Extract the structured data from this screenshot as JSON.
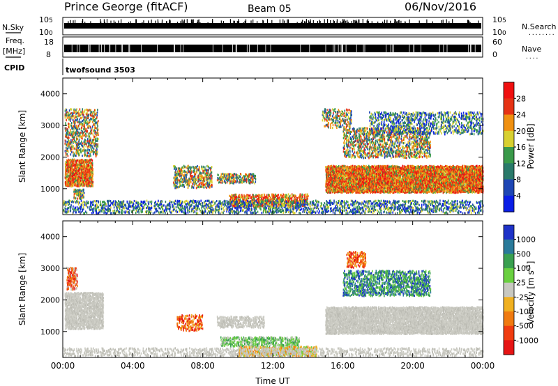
{
  "header": {
    "station": "Prince George (fitACF)",
    "beam": "Beam 05",
    "date": "06/Nov/2016"
  },
  "nsky_panel": {
    "left_label": "N.Sky",
    "right_label": "N.Search",
    "right_dots": "........",
    "left_ticks": [
      {
        "base": "10",
        "exp": "5",
        "value": 100000
      },
      {
        "base": "10",
        "exp": "0",
        "value": 1
      }
    ],
    "right_ticks": [
      {
        "base": "10",
        "exp": "5",
        "value": 100000
      },
      {
        "base": "10",
        "exp": "0",
        "value": 1
      }
    ]
  },
  "freq_panel": {
    "left_label_1": "Freq.",
    "left_label_2": "[MHz]",
    "right_label": "Nave",
    "right_dots": "....",
    "left_ticks": [
      "18",
      "8"
    ],
    "right_ticks": [
      "60",
      "0"
    ],
    "ylim_left": [
      8,
      18
    ],
    "ylim_right": [
      0,
      60
    ]
  },
  "cpid": {
    "label": "CPID",
    "value": "twofsound 3503"
  },
  "chart_data": [
    {
      "type": "heatmap",
      "name": "power",
      "ylabel": "Slant Range [km]",
      "colorbar_label": "Power [dB]",
      "yticks": [
        "1000",
        "2000",
        "3000",
        "4000"
      ],
      "ylim": [
        180,
        4500
      ],
      "xlim": [
        "00:00",
        "24:00"
      ],
      "colorbar_ticks": [
        "4",
        "8",
        "12",
        "16",
        "20",
        "24",
        "28"
      ],
      "colorbar_colors": [
        "#0a1ee6",
        "#1e46b4",
        "#2a7a6a",
        "#3a9a4a",
        "#d8d030",
        "#f09010",
        "#e63214",
        "#f01010"
      ],
      "scatter_regions": [
        {
          "t0": 0.1,
          "t1": 1.7,
          "r0": 1050,
          "r1": 1900,
          "density": 0.85,
          "level": "high"
        },
        {
          "t0": 0.1,
          "t1": 2.0,
          "r0": 2000,
          "r1": 3500,
          "density": 0.35,
          "level": "mid"
        },
        {
          "t0": 0.6,
          "t1": 1.2,
          "r0": 650,
          "r1": 950,
          "density": 0.5,
          "level": "mid"
        },
        {
          "t0": 6.3,
          "t1": 8.5,
          "r0": 1000,
          "r1": 1700,
          "density": 0.45,
          "level": "mid"
        },
        {
          "t0": 8.8,
          "t1": 11.0,
          "r0": 1150,
          "r1": 1450,
          "density": 0.5,
          "level": "mid"
        },
        {
          "t0": 9.5,
          "t1": 14.0,
          "r0": 400,
          "r1": 800,
          "density": 0.55,
          "level": "high"
        },
        {
          "t0": 0.0,
          "t1": 24.0,
          "r0": 200,
          "r1": 600,
          "density": 0.35,
          "level": "low"
        },
        {
          "t0": 15.0,
          "t1": 24.0,
          "r0": 850,
          "r1": 1700,
          "density": 0.95,
          "level": "high"
        },
        {
          "t0": 16.0,
          "t1": 21.0,
          "r0": 1950,
          "r1": 2900,
          "density": 0.4,
          "level": "mid"
        },
        {
          "t0": 17.5,
          "t1": 24.0,
          "r0": 2700,
          "r1": 3400,
          "density": 0.3,
          "level": "low"
        },
        {
          "t0": 14.8,
          "t1": 16.5,
          "r0": 2900,
          "r1": 3500,
          "density": 0.35,
          "level": "mid"
        }
      ]
    },
    {
      "type": "heatmap",
      "name": "velocity",
      "ylabel": "Slant Range [km]",
      "colorbar_label": "Velocity [m s",
      "colorbar_label_sup": "-1",
      "colorbar_label_end": "]",
      "yticks": [
        "1000",
        "2000",
        "3000",
        "4000"
      ],
      "ylim": [
        180,
        4500
      ],
      "xlim": [
        "00:00",
        "24:00"
      ],
      "xticks": [
        "00:00",
        "04:00",
        "08:00",
        "12:00",
        "16:00",
        "20:00",
        "00:00"
      ],
      "xlabel": "Time UT",
      "colorbar_ticks": [
        "1000",
        "500",
        "100",
        "25",
        "-25",
        "-100",
        "-500",
        "-1000"
      ],
      "colorbar_colors": [
        "#1e32c8",
        "#2a7a9a",
        "#3aa050",
        "#6ad040",
        "#c8c8c0",
        "#f0b020",
        "#f07a10",
        "#f03c10",
        "#e61414"
      ],
      "scatter_regions": [
        {
          "t0": 0.1,
          "t1": 2.3,
          "r0": 1050,
          "r1": 2200,
          "density": 0.8,
          "level": "gray"
        },
        {
          "t0": 0.2,
          "t1": 0.8,
          "r0": 2300,
          "r1": 3000,
          "density": 0.5,
          "level": "red"
        },
        {
          "t0": 15.0,
          "t1": 24.0,
          "r0": 900,
          "r1": 1750,
          "density": 0.9,
          "level": "gray"
        },
        {
          "t0": 16.0,
          "t1": 21.0,
          "r0": 2100,
          "r1": 2900,
          "density": 0.45,
          "level": "green"
        },
        {
          "t0": 16.2,
          "t1": 17.3,
          "r0": 3000,
          "r1": 3500,
          "density": 0.4,
          "level": "orange"
        },
        {
          "t0": 8.8,
          "t1": 11.5,
          "r0": 1100,
          "r1": 1450,
          "density": 0.55,
          "level": "gray"
        },
        {
          "t0": 6.5,
          "t1": 8.0,
          "r0": 1000,
          "r1": 1500,
          "density": 0.4,
          "level": "orange"
        },
        {
          "t0": 9.0,
          "t1": 13.5,
          "r0": 500,
          "r1": 800,
          "density": 0.5,
          "level": "lightgreen"
        },
        {
          "t0": 10.0,
          "t1": 14.5,
          "r0": 200,
          "r1": 500,
          "density": 0.7,
          "level": "yellow"
        },
        {
          "t0": 0.0,
          "t1": 24.0,
          "r0": 200,
          "r1": 450,
          "density": 0.3,
          "level": "gray"
        }
      ]
    }
  ]
}
